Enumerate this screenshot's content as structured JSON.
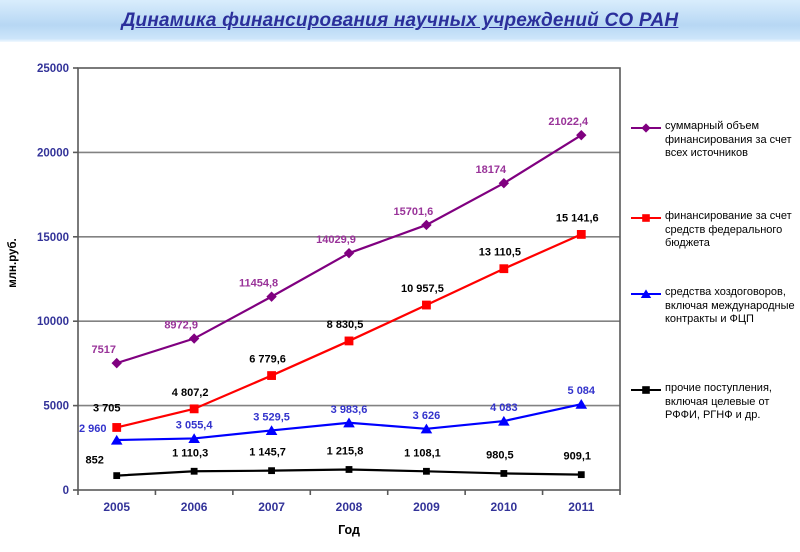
{
  "slide": {
    "title": "Динамика финансирования научных учреждений СО РАН"
  },
  "colors": {
    "title_text": "#2b2f9b",
    "band_top": "#d9edfc",
    "band_mid": "#b7d7f4",
    "band_bot": "#cde5fa",
    "axis_text": "#333399",
    "axis_title_text": "#000000",
    "gridline": "#828282",
    "plot_border": "#595959",
    "series_total": "#800080",
    "series_total_label": "#993399",
    "series_federal": "#ff0000",
    "series_contracts": "#0000ff",
    "series_contracts_label": "#3333cc",
    "series_other": "#000000"
  },
  "chart_data": {
    "type": "line",
    "title": "Динамика финансирования научных учреждений СО РАН",
    "xlabel": "Год",
    "ylabel": "млн.руб.",
    "categories": [
      "2005",
      "2006",
      "2007",
      "2008",
      "2009",
      "2010",
      "2011"
    ],
    "ylim": [
      0,
      25000
    ],
    "y_ticks": [
      0,
      5000,
      10000,
      15000,
      20000,
      25000
    ],
    "y_tick_labels": [
      "0",
      "5000",
      "10000",
      "15000",
      "20000",
      "25000"
    ],
    "grid": "horizontal",
    "legend_position": "right",
    "series": [
      {
        "name": "суммарный объем финансирования за счет всех источников",
        "marker": "diamond",
        "color": "#800080",
        "label_color": "#993399",
        "values": [
          7517,
          8972.9,
          11454.8,
          14029.9,
          15701.6,
          18174,
          21022.4
        ],
        "labels": [
          "7517",
          "8972,9",
          "11454,8",
          "14029,9",
          "15701,6",
          "18174",
          "21022,4"
        ]
      },
      {
        "name": "финансирование за счет средств федерального бюджета",
        "marker": "square",
        "color": "#ff0000",
        "label_color": "#000000",
        "values": [
          3705,
          4807.2,
          6779.6,
          8830.5,
          10957.5,
          13110.5,
          15141.6
        ],
        "labels": [
          "3 705",
          "4 807,2",
          "6 779,6",
          "8 830,5",
          "10 957,5",
          "13 110,5",
          "15 141,6"
        ]
      },
      {
        "name": "средства хоздоговоров, включая международные контракты и ФЦП",
        "marker": "triangle",
        "color": "#0000ff",
        "label_color": "#3333cc",
        "values": [
          2960,
          3055.4,
          3529.5,
          3983.6,
          3626,
          4083,
          5084
        ],
        "labels": [
          "2 960",
          "3 055,4",
          "3 529,5",
          "3 983,6",
          "3 626",
          "4 083",
          "5 084"
        ]
      },
      {
        "name": "прочие поступления, включая целевые от РФФИ, РГНФ и др.",
        "marker": "square",
        "color": "#000000",
        "label_color": "#000000",
        "values": [
          852,
          1110.3,
          1145.7,
          1215.8,
          1108.1,
          980.5,
          909.1
        ],
        "labels": [
          "852",
          "1 110,3",
          "1 145,7",
          "1 215,8",
          "1 108,1",
          "980,5",
          "909,1"
        ]
      }
    ]
  }
}
